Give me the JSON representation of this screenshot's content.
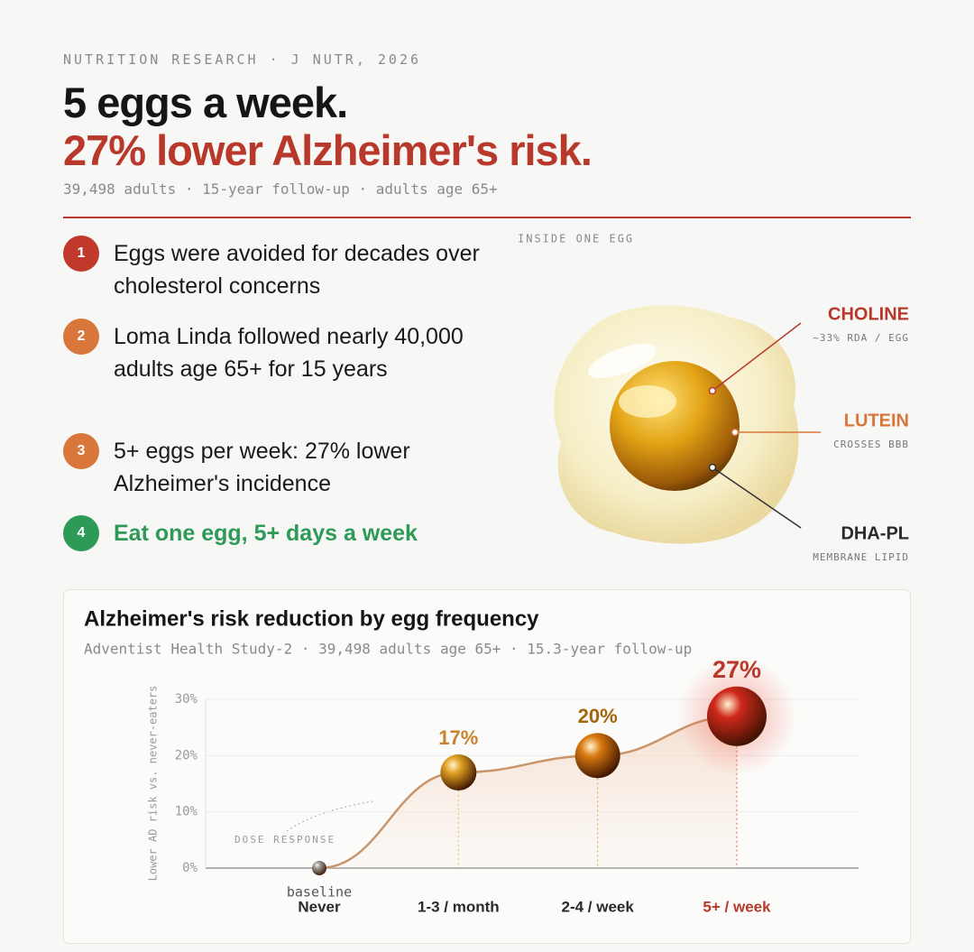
{
  "header": {
    "kicker": "NUTRITION RESEARCH · J NUTR, 2026",
    "title_line1": "5 eggs a week.",
    "title_line2": "27% lower Alzheimer's risk.",
    "subtitle": "39,498 adults · 15-year follow-up · adults age 65+"
  },
  "points": [
    {
      "number": "1",
      "text": "Eggs were avoided for decades over cholesterol concerns",
      "color": "#c0392b"
    },
    {
      "number": "2",
      "text": "Loma Linda followed nearly 40,000 adults age 65+ for 15 years",
      "color": "#d9773a"
    },
    {
      "number": "3",
      "text": "5+ eggs per week: 27% lower Alzheimer's incidence",
      "color": "#d9773a"
    },
    {
      "number": "4",
      "text": "Eat one egg, 5+ days a week",
      "color": "#2e9a57"
    }
  ],
  "egg": {
    "caption": "INSIDE ONE EGG",
    "nutrients": [
      {
        "name": "CHOLINE",
        "note": "~33% RDA / EGG",
        "color": "#b8392b"
      },
      {
        "name": "LUTEIN",
        "note": "CROSSES BBB",
        "color": "#d9773a"
      },
      {
        "name": "DHA-PL",
        "note": "MEMBRANE LIPID",
        "color": "#2a2a2a"
      }
    ]
  },
  "chart_data": {
    "type": "line",
    "title": "Alzheimer's risk reduction by egg frequency",
    "subtitle": "Adventist Health Study-2 · 39,498 adults age 65+ · 15.3-year follow-up",
    "y_label": "Lower AD risk vs. never-eaters",
    "annotation": "DOSE RESPONSE",
    "baseline_label": "baseline",
    "categories": [
      "Never",
      "1-3 / month",
      "2-4 / week",
      "5+ / week"
    ],
    "values": [
      0,
      17,
      20,
      27
    ],
    "value_labels": [
      null,
      "17%",
      "20%",
      "27%"
    ],
    "point_colors": [
      "#9a9a9a",
      "#e0a020",
      "#d97a10",
      "#d0281c"
    ],
    "label_colors": [
      "#2a2a2a",
      "#2a2a2a",
      "#2a2a2a",
      "#b8392b"
    ],
    "value_label_colors": [
      null,
      "#c9822e",
      "#a5650f",
      "#b8392b"
    ],
    "line_color": "#c9956a",
    "ylim": [
      0,
      30
    ],
    "yticks": [
      {
        "value": 0,
        "label": "0%"
      },
      {
        "value": 10,
        "label": "10%"
      },
      {
        "value": 20,
        "label": "20%"
      },
      {
        "value": 30,
        "label": "30%"
      }
    ],
    "grid": true
  }
}
